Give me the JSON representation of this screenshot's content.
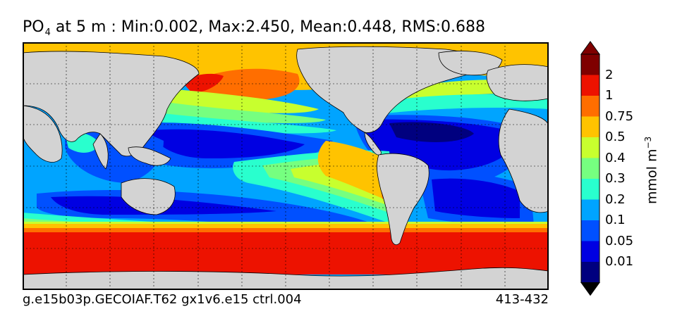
{
  "title": {
    "variable": "PO",
    "variable_subscript": "4",
    "text": "at 5 m : Min:0.002, Max:2.450, Mean:0.448, RMS:0.688"
  },
  "footer": {
    "case_name": "g.e15b03p.GECOIAF.T62 gx1v6.e15 ctrl.004",
    "years": "413-432"
  },
  "colorbar": {
    "unit_base": "mmol m",
    "unit_exponent": "−3",
    "labels": [
      "2",
      "1",
      "0.75",
      "0.5",
      "0.4",
      "0.3",
      "0.2",
      "0.1",
      "0.05",
      "0.01"
    ],
    "colors": [
      "#7f0000",
      "#ed1200",
      "#ff6e00",
      "#ffc300",
      "#c8ff2e",
      "#76ff80",
      "#29ffce",
      "#00a4ff",
      "#0050ff",
      "#0000e2",
      "#00007f"
    ],
    "land_color": "#d3d3d3"
  },
  "chart_data": {
    "type": "heatmap",
    "title": "PO4 at 5 m : Min:0.002, Max:2.450, Mean:0.448, RMS:0.688",
    "stats": {
      "min": 0.002,
      "max": 2.45,
      "mean": 0.448,
      "rms": 0.688
    },
    "level_boundaries": [
      0.01,
      0.05,
      0.1,
      0.2,
      0.3,
      0.4,
      0.5,
      0.75,
      1,
      2
    ],
    "unit": "mmol m^-3",
    "grid": true,
    "legend": "right"
  }
}
